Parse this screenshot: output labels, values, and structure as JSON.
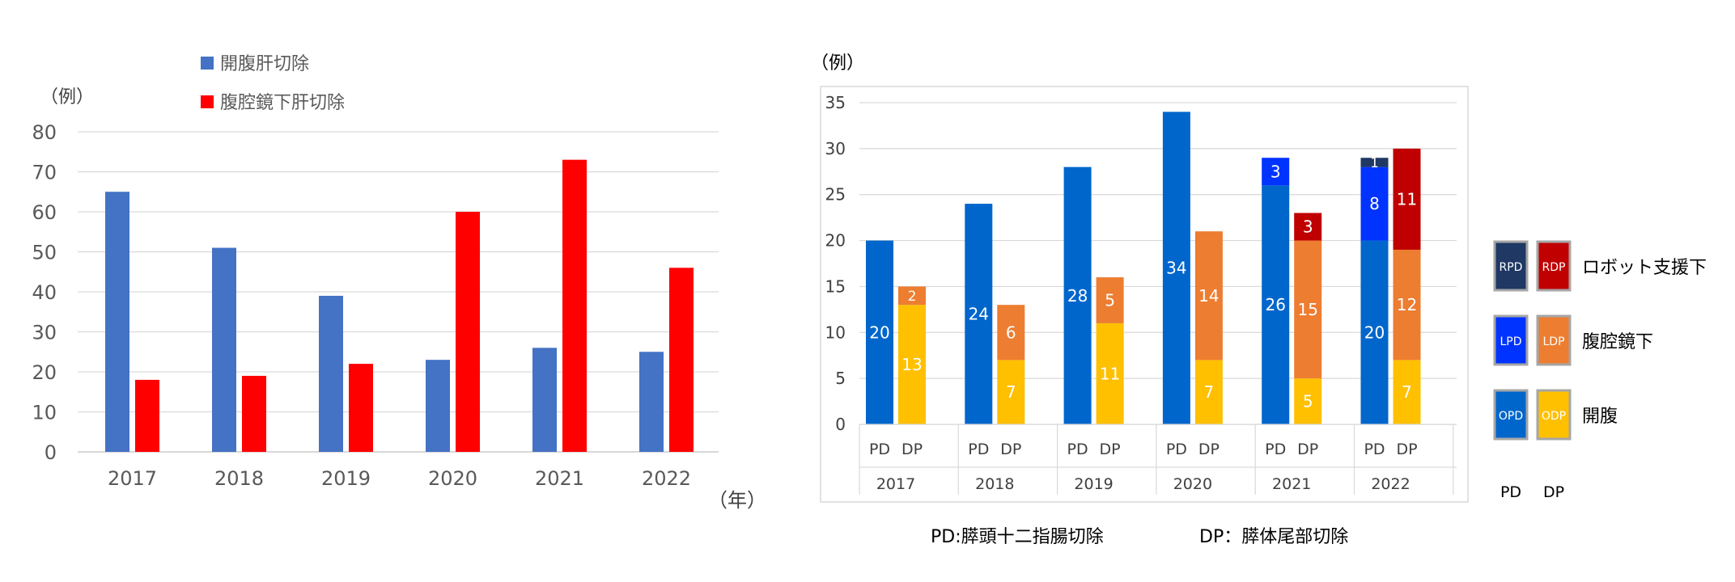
{
  "chart_data": [
    {
      "type": "bar",
      "ylabel": "（例）",
      "xlabel": "（年）",
      "ylim": [
        0,
        80
      ],
      "yticks": [
        0,
        10,
        20,
        30,
        40,
        50,
        60,
        70,
        80
      ],
      "grid": true,
      "legend": "top",
      "categories": [
        "2017",
        "2018",
        "2019",
        "2020",
        "2021",
        "2022"
      ],
      "series": [
        {
          "name": "開腹肝切除",
          "color": "#4472C4",
          "values": [
            65,
            51,
            39,
            23,
            26,
            25
          ]
        },
        {
          "name": "腹腔鏡下肝切除",
          "color": "#FF0000",
          "values": [
            18,
            19,
            22,
            60,
            73,
            46
          ]
        }
      ]
    },
    {
      "type": "bar",
      "stacked": true,
      "ylabel": "（例）",
      "ylim": [
        0,
        35
      ],
      "yticks": [
        0,
        5,
        10,
        15,
        20,
        25,
        30,
        35
      ],
      "grid": true,
      "legend": "right",
      "categories": [
        "2017",
        "2018",
        "2019",
        "2020",
        "2021",
        "2022"
      ],
      "subcategories": [
        "PD",
        "DP"
      ],
      "series": [
        {
          "name": "OPD",
          "group": "PD",
          "color": "#0066CC",
          "values": [
            20,
            24,
            28,
            34,
            26,
            20
          ]
        },
        {
          "name": "LPD",
          "group": "PD",
          "color": "#0033FF",
          "values": [
            0,
            0,
            0,
            0,
            3,
            8
          ]
        },
        {
          "name": "RPD",
          "group": "PD",
          "color": "#1F3864",
          "values": [
            0,
            0,
            0,
            0,
            0,
            1
          ]
        },
        {
          "name": "ODP",
          "group": "DP",
          "color": "#FFC000",
          "values": [
            13,
            7,
            11,
            7,
            5,
            7
          ]
        },
        {
          "name": "LDP",
          "group": "DP",
          "color": "#ED7D31",
          "values": [
            2,
            6,
            5,
            14,
            15,
            12
          ]
        },
        {
          "name": "RDP",
          "group": "DP",
          "color": "#C00000",
          "values": [
            0,
            0,
            0,
            0,
            3,
            11
          ]
        }
      ],
      "legend_rows": [
        "ロボット支援下",
        "腹腔鏡下",
        "開腹"
      ],
      "legend_columns": [
        "PD",
        "DP"
      ],
      "footnotes": [
        "PD:膵頭十二指腸切除",
        "DP：膵体尾部切除"
      ]
    }
  ]
}
